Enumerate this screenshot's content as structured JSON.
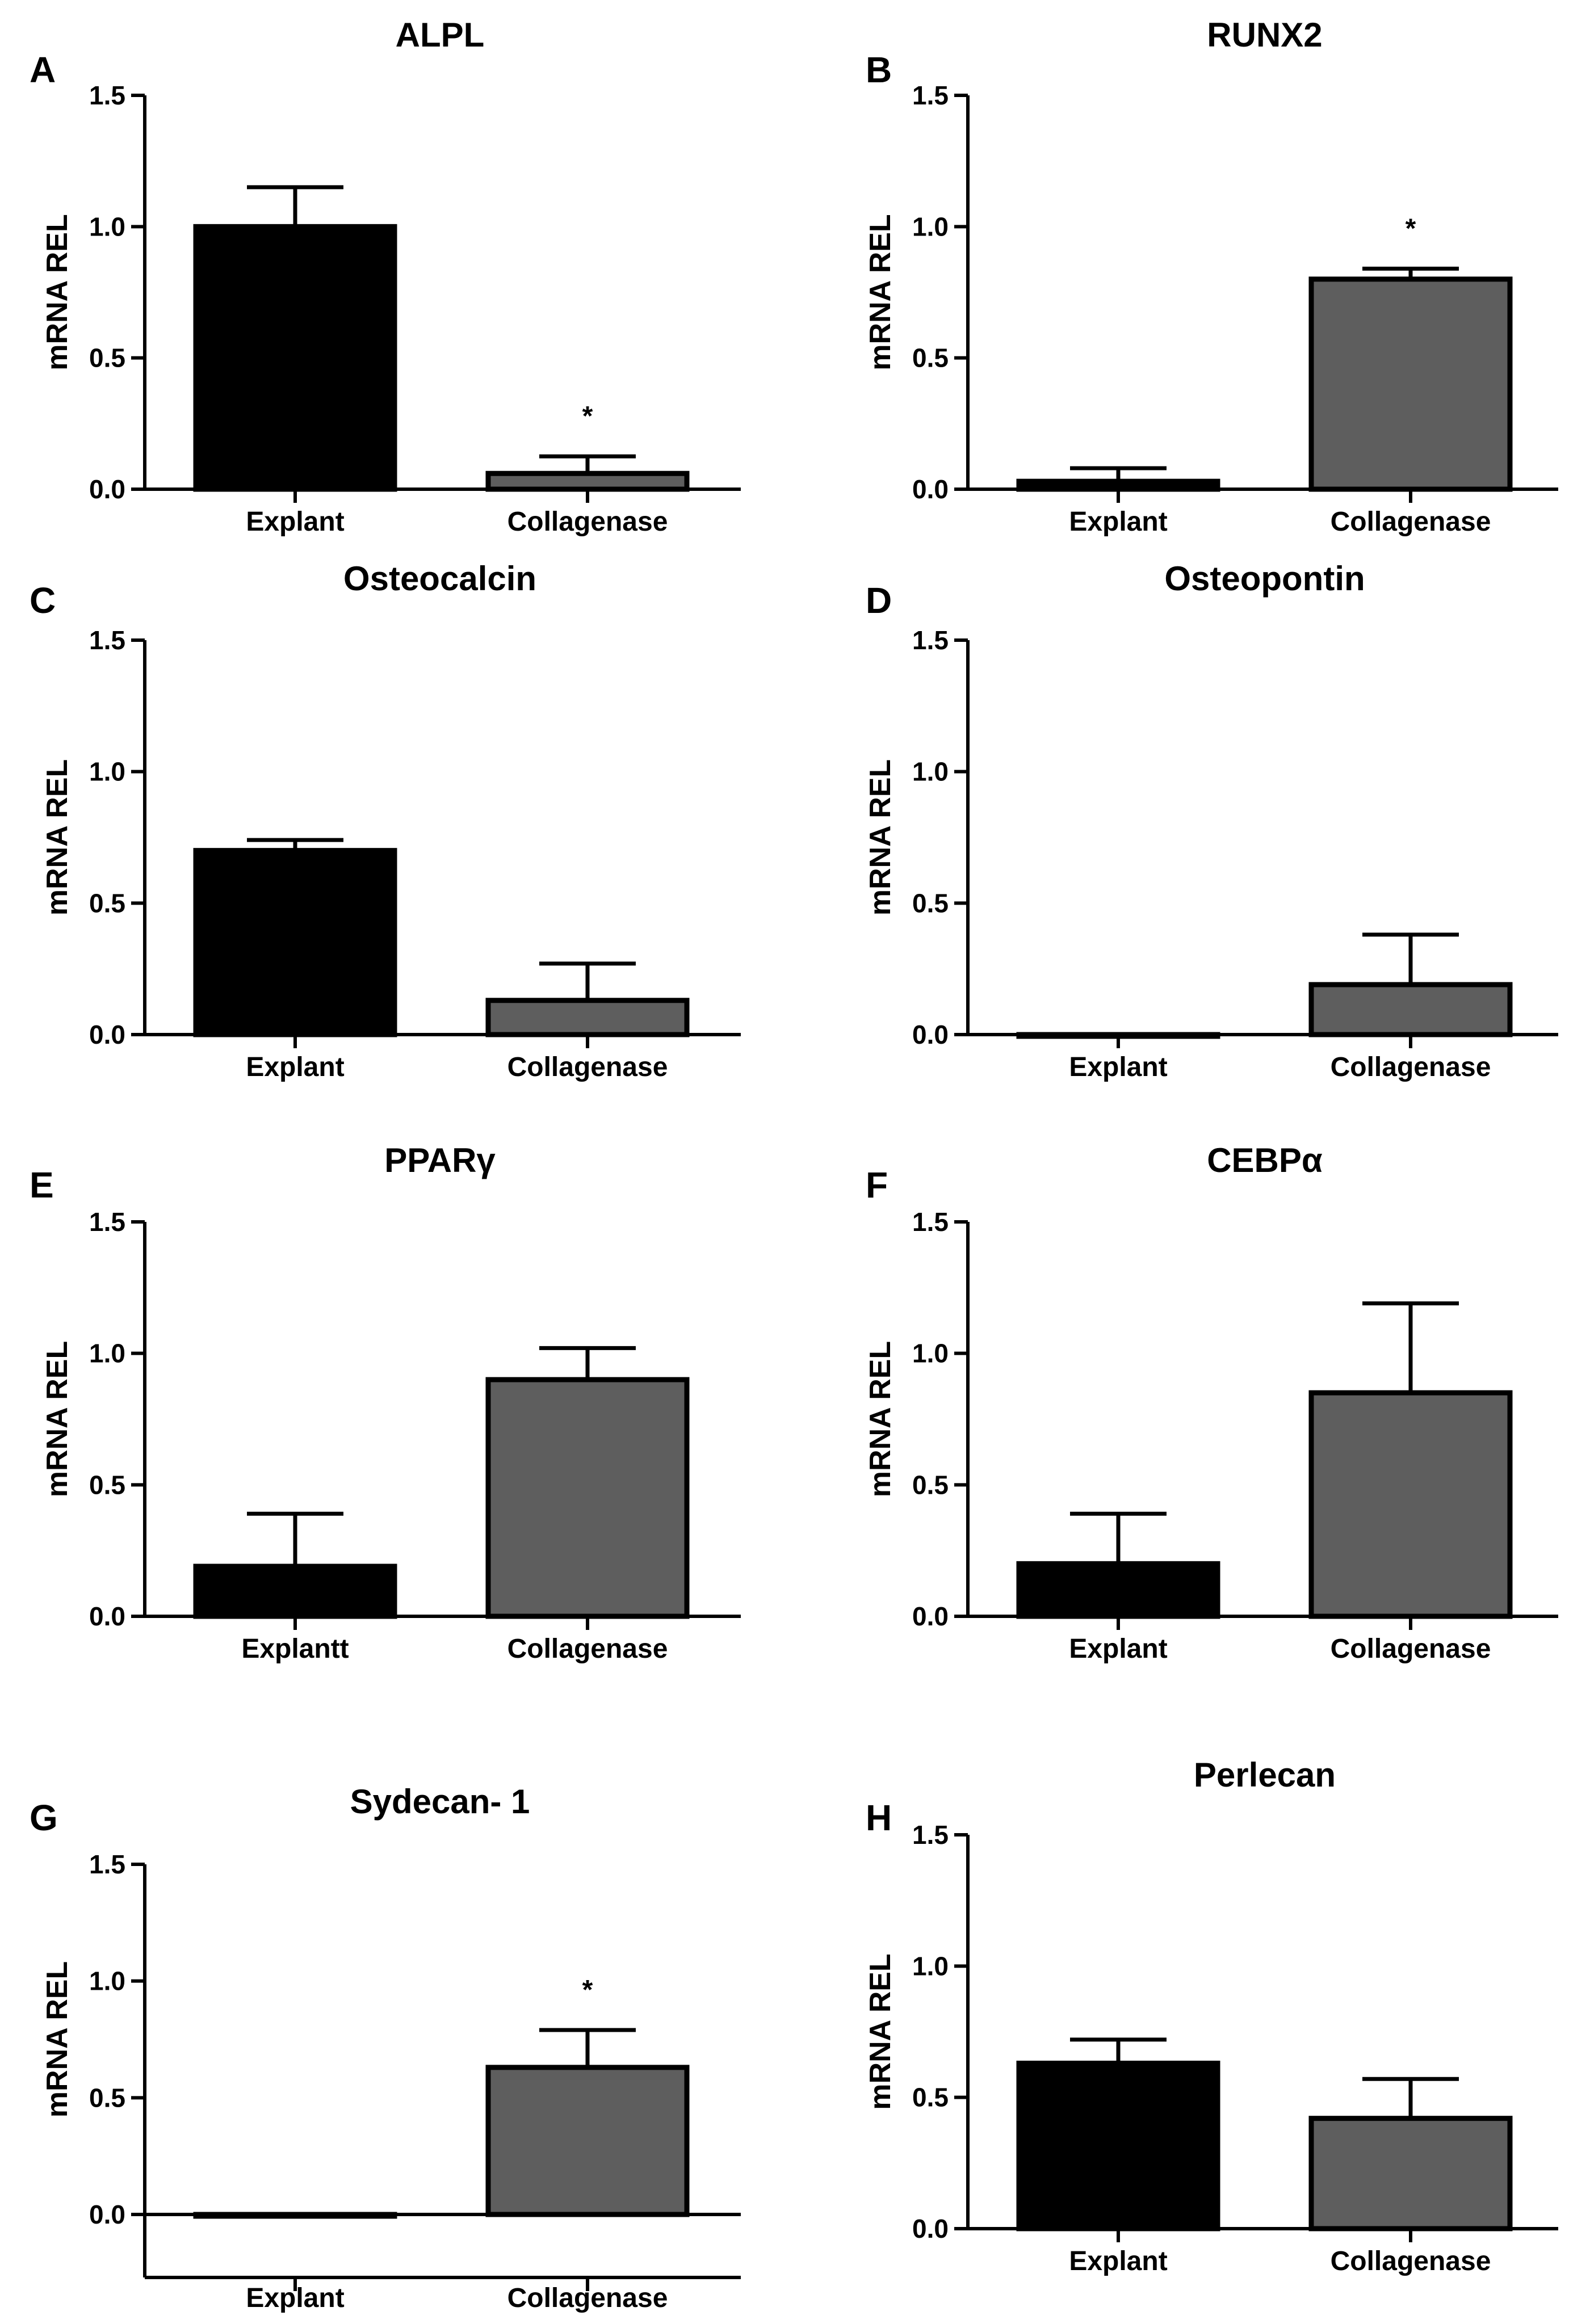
{
  "colors": {
    "explant_fill": "#000000",
    "collagenase_fill": "#5e5e5e",
    "axis": "#000000"
  },
  "chart_data": [
    {
      "panel": "A",
      "type": "bar",
      "title": "ALPL",
      "ylabel": "mRNA REL",
      "xlabel": "",
      "categories": [
        "Explant",
        "Collagenase"
      ],
      "values": [
        1.0,
        0.06
      ],
      "errors": [
        0.15,
        0.065
      ],
      "significance": [
        "",
        "*"
      ],
      "ylim": [
        0,
        1.5
      ],
      "yticks": [
        0.0,
        0.5,
        1.0,
        1.5
      ],
      "ytick_labels": [
        "0.0",
        "0.5",
        "1.0",
        "1.5"
      ]
    },
    {
      "panel": "B",
      "type": "bar",
      "title": "RUNX2",
      "ylabel": "mRNA REL",
      "xlabel": "",
      "categories": [
        "Explant",
        "Collagenase"
      ],
      "values": [
        0.03,
        0.8
      ],
      "errors": [
        0.05,
        0.04
      ],
      "significance": [
        "",
        "*"
      ],
      "ylim": [
        0,
        1.5
      ],
      "yticks": [
        0.0,
        0.5,
        1.0,
        1.5
      ],
      "ytick_labels": [
        "0.0",
        "0.5",
        "1.0",
        "1.5"
      ]
    },
    {
      "panel": "C",
      "type": "bar",
      "title": "Osteocalcin",
      "ylabel": "mRNA REL",
      "xlabel": "",
      "categories": [
        "Explant",
        "Collagenase"
      ],
      "values": [
        0.7,
        0.13
      ],
      "errors": [
        0.04,
        0.14
      ],
      "significance": [
        "",
        ""
      ],
      "ylim": [
        0,
        1.5
      ],
      "yticks": [
        0.0,
        0.5,
        1.0,
        1.5
      ],
      "ytick_labels": [
        "0.0",
        "0.5",
        "1.0",
        "1.5"
      ]
    },
    {
      "panel": "D",
      "type": "bar",
      "title": "Osteopontin",
      "ylabel": "mRNA REL",
      "xlabel": "",
      "categories": [
        "Explant",
        "Collagenase"
      ],
      "values": [
        0.0,
        0.19
      ],
      "errors": [
        0.0,
        0.19
      ],
      "significance": [
        "",
        ""
      ],
      "ylim": [
        0,
        1.5
      ],
      "yticks": [
        0.0,
        0.5,
        1.0,
        1.5
      ],
      "ytick_labels": [
        "0.0",
        "0.5",
        "1.0",
        "1.5"
      ]
    },
    {
      "panel": "E",
      "type": "bar",
      "title": "PPARγ",
      "ylabel": "mRNA REL",
      "xlabel": "",
      "categories": [
        "Explantt",
        "Collagenase"
      ],
      "values": [
        0.19,
        0.9
      ],
      "errors": [
        0.2,
        0.12
      ],
      "significance": [
        "",
        ""
      ],
      "ylim": [
        0,
        1.5
      ],
      "yticks": [
        0.0,
        0.5,
        1.0,
        1.5
      ],
      "ytick_labels": [
        "0.0",
        "0.5",
        "1.0",
        "1.5"
      ]
    },
    {
      "panel": "F",
      "type": "bar",
      "title": "CEBPα",
      "ylabel": "mRNA REL",
      "xlabel": "",
      "categories": [
        "Explant",
        "Collagenase"
      ],
      "values": [
        0.2,
        0.85
      ],
      "errors": [
        0.19,
        0.34
      ],
      "significance": [
        "",
        ""
      ],
      "ylim": [
        0,
        1.5
      ],
      "yticks": [
        0.0,
        0.5,
        1.0,
        1.5
      ],
      "ytick_labels": [
        "0.0",
        "0.5",
        "1.0",
        "1.5"
      ]
    },
    {
      "panel": "G",
      "type": "bar",
      "title": "Sydecan- 1",
      "ylabel": "mRNA REL",
      "xlabel": "",
      "categories": [
        "Explant",
        "Collagenase"
      ],
      "values": [
        0.0,
        0.63
      ],
      "errors": [
        0.0,
        0.16
      ],
      "significance": [
        "",
        "*"
      ],
      "ylim": [
        -0.2,
        1.5
      ],
      "yticks": [
        0.0,
        0.5,
        1.0,
        1.5
      ],
      "ytick_labels": [
        "0.0",
        "0.5",
        "1.0",
        "1.5"
      ]
    },
    {
      "panel": "H",
      "type": "bar",
      "title": "Perlecan",
      "ylabel": "mRNA REL",
      "xlabel": "",
      "categories": [
        "Explant",
        "Collagenase"
      ],
      "values": [
        0.63,
        0.42
      ],
      "errors": [
        0.09,
        0.15
      ],
      "significance": [
        "",
        ""
      ],
      "ylim": [
        0,
        1.5
      ],
      "yticks": [
        0.0,
        0.5,
        1.0,
        1.5
      ],
      "ytick_labels": [
        "0.0",
        "0.5",
        "1.0",
        "1.5"
      ]
    }
  ]
}
